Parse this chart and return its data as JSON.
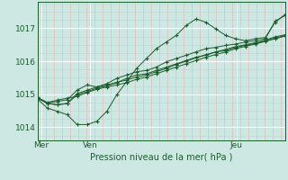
{
  "background_color": "#cde8e3",
  "plot_bg_color": "#cde8e3",
  "grid_major_color": "#ffffff",
  "grid_minor_v_color": "#e8b0b0",
  "grid_minor_h_color": "#b8d8d4",
  "line_color": "#1a5c2a",
  "tick_color": "#1a5c2a",
  "label_color": "#1a5c2a",
  "ylabel_ticks": [
    1014,
    1015,
    1016,
    1017
  ],
  "xlabel": "Pression niveau de la mer( hPa )",
  "xtick_labels": [
    "Mer",
    "Ven",
    "Jeu"
  ],
  "xtick_positions": [
    2,
    26,
    98
  ],
  "xlim": [
    0,
    122
  ],
  "ylim": [
    1013.6,
    1017.8
  ],
  "series": [
    [
      1014.9,
      1014.75,
      1014.82,
      1014.88,
      1014.93,
      1015.05,
      1015.15,
      1015.22,
      1015.28,
      1015.35,
      1015.45,
      1015.52,
      1015.62,
      1015.72,
      1015.82,
      1015.92,
      1016.02,
      1016.12,
      1016.2,
      1016.28,
      1016.38,
      1016.45,
      1016.52,
      1016.6,
      1016.68,
      1016.76
    ],
    [
      1014.88,
      1014.72,
      1014.68,
      1014.72,
      1014.98,
      1015.08,
      1015.18,
      1015.25,
      1015.35,
      1015.48,
      1015.58,
      1015.62,
      1015.72,
      1015.82,
      1015.92,
      1016.02,
      1016.12,
      1016.18,
      1016.28,
      1016.32,
      1016.42,
      1016.48,
      1016.54,
      1016.62,
      1016.7,
      1016.78
    ],
    [
      1014.9,
      1014.73,
      1014.68,
      1014.72,
      1015.02,
      1015.12,
      1015.22,
      1015.28,
      1015.36,
      1015.43,
      1015.52,
      1015.58,
      1015.68,
      1015.78,
      1015.9,
      1016.0,
      1016.1,
      1016.2,
      1016.28,
      1016.36,
      1016.44,
      1016.5,
      1016.56,
      1016.64,
      1016.74,
      1016.8
    ],
    [
      1014.85,
      1014.58,
      1014.48,
      1014.38,
      1014.08,
      1014.08,
      1014.18,
      1014.48,
      1014.98,
      1015.38,
      1015.78,
      1016.08,
      1016.38,
      1016.58,
      1016.78,
      1017.08,
      1017.28,
      1017.18,
      1016.98,
      1016.78,
      1016.68,
      1016.62,
      1016.68,
      1016.72,
      1017.18,
      1017.42
    ],
    [
      1014.88,
      1014.73,
      1014.78,
      1014.83,
      1015.12,
      1015.28,
      1015.22,
      1015.32,
      1015.48,
      1015.58,
      1015.68,
      1015.72,
      1015.82,
      1015.98,
      1016.08,
      1016.18,
      1016.28,
      1016.38,
      1016.42,
      1016.48,
      1016.52,
      1016.58,
      1016.62,
      1016.68,
      1017.22,
      1017.38
    ]
  ],
  "n_minor_v": 6,
  "figsize": [
    3.2,
    2.0
  ],
  "dpi": 100
}
